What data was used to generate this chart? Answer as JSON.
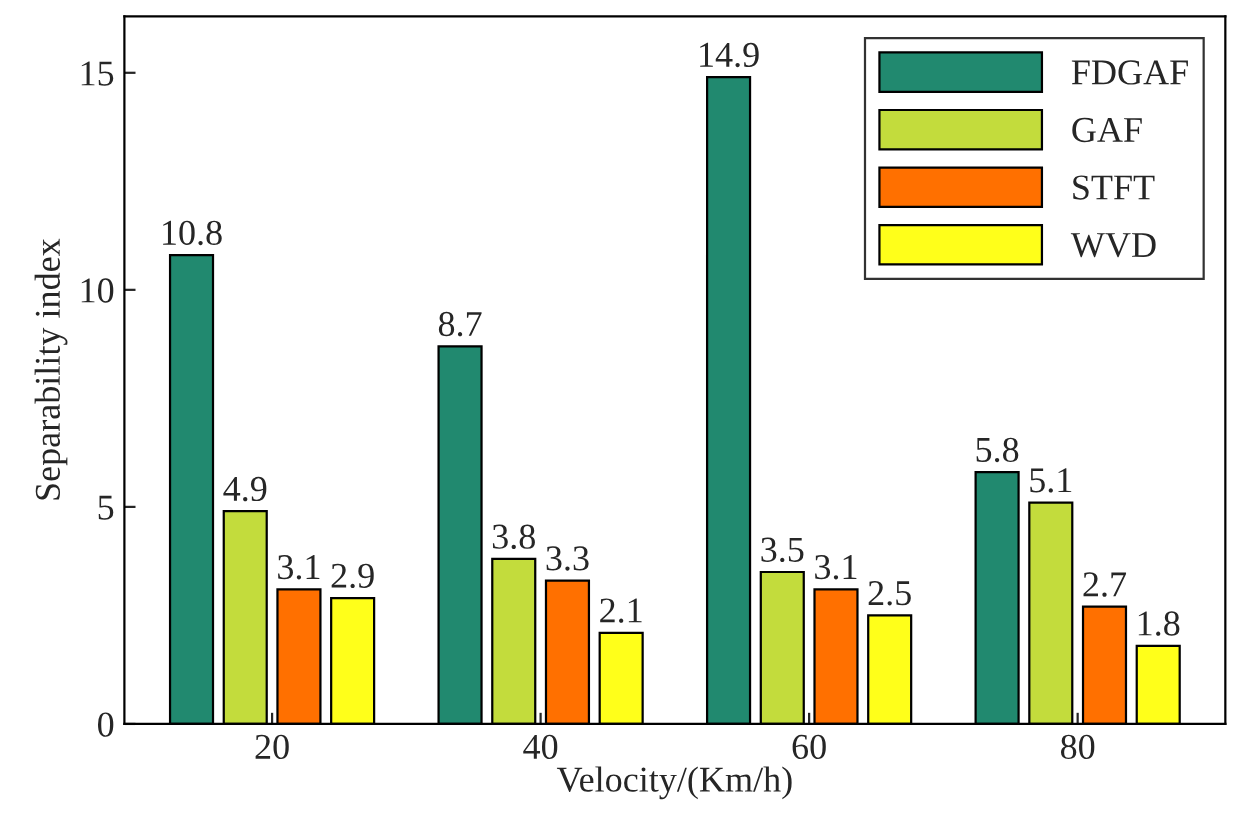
{
  "chart_data": {
    "type": "bar",
    "xlabel": "Velocity/(Km/h)",
    "ylabel": "Separability index",
    "categories": [
      "20",
      "40",
      "60",
      "80"
    ],
    "series": [
      {
        "name": "FDGAF",
        "color": "#21896f",
        "values": [
          10.8,
          8.7,
          14.9,
          5.8
        ]
      },
      {
        "name": "GAF",
        "color": "#c3dc3c",
        "values": [
          4.9,
          3.8,
          3.5,
          5.1
        ]
      },
      {
        "name": "STFT",
        "color": "#ff7000",
        "values": [
          3.1,
          3.3,
          3.1,
          2.7
        ]
      },
      {
        "name": "WVD",
        "color": "#ffff1a",
        "values": [
          2.9,
          2.1,
          2.5,
          1.8
        ]
      }
    ],
    "ylim": [
      0,
      16.3
    ],
    "yticks": [
      0,
      5,
      10,
      15
    ],
    "data_labels": true,
    "legend": "top right",
    "grid": false
  }
}
